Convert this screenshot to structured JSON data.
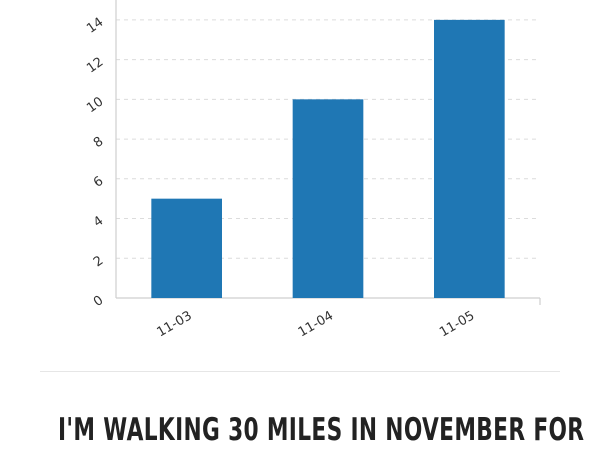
{
  "chart_data": {
    "type": "bar",
    "categories": [
      "11-03",
      "11-04",
      "11-05"
    ],
    "values": [
      5,
      10,
      14
    ],
    "ylim": [
      0,
      15
    ],
    "yticks": [
      0,
      2,
      4,
      6,
      8,
      10,
      12,
      14
    ],
    "grid": true,
    "bar_color": "#1f77b4",
    "title": "",
    "xlabel": "",
    "ylabel": ""
  },
  "page": {
    "heading": "I'M WALKING 30 MILES IN NOVEMBER FOR"
  },
  "colors": {
    "bar": "#1f77b4",
    "grid": "#dcdcdc",
    "text": "#222222"
  }
}
